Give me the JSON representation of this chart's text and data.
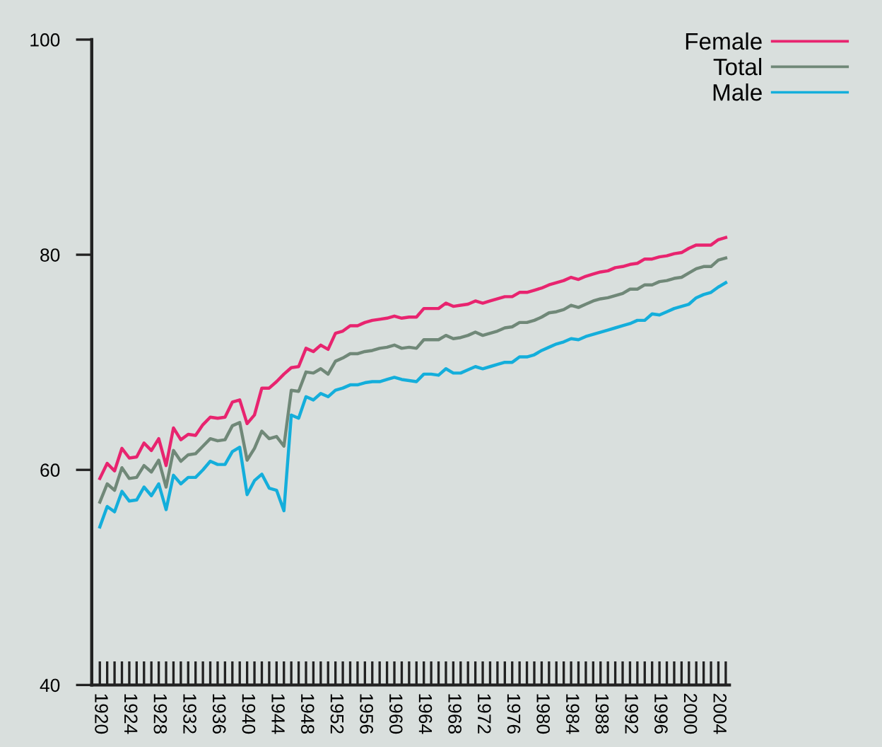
{
  "chart_data": {
    "type": "line",
    "x": [
      1920,
      1921,
      1922,
      1923,
      1924,
      1925,
      1926,
      1927,
      1928,
      1929,
      1930,
      1931,
      1932,
      1933,
      1934,
      1935,
      1936,
      1937,
      1938,
      1939,
      1940,
      1941,
      1942,
      1943,
      1944,
      1945,
      1946,
      1947,
      1948,
      1949,
      1950,
      1951,
      1952,
      1953,
      1954,
      1955,
      1956,
      1957,
      1958,
      1959,
      1960,
      1961,
      1962,
      1963,
      1964,
      1965,
      1966,
      1967,
      1968,
      1969,
      1970,
      1971,
      1972,
      1973,
      1974,
      1975,
      1976,
      1977,
      1978,
      1979,
      1980,
      1981,
      1982,
      1983,
      1984,
      1985,
      1986,
      1987,
      1988,
      1989,
      1990,
      1991,
      1992,
      1993,
      1994,
      1995,
      1996,
      1997,
      1998,
      1999,
      2000,
      2001,
      2002,
      2003,
      2004,
      2005
    ],
    "series": [
      {
        "name": "Female",
        "color": "#e8246f",
        "values": [
          59.2,
          60.6,
          59.9,
          62.0,
          61.1,
          61.2,
          62.5,
          61.8,
          62.9,
          60.4,
          63.9,
          62.8,
          63.3,
          63.2,
          64.2,
          64.9,
          64.8,
          64.9,
          66.3,
          66.5,
          64.3,
          65.1,
          67.6,
          67.6,
          68.2,
          68.9,
          69.5,
          69.6,
          71.3,
          71.0,
          71.6,
          71.2,
          72.7,
          72.9,
          73.4,
          73.4,
          73.7,
          73.9,
          74.0,
          74.1,
          74.3,
          74.1,
          74.2,
          74.2,
          75.0,
          75.0,
          75.0,
          75.5,
          75.2,
          75.3,
          75.4,
          75.7,
          75.5,
          75.7,
          75.9,
          76.1,
          76.1,
          76.5,
          76.5,
          76.7,
          76.9,
          77.2,
          77.4,
          77.6,
          77.9,
          77.7,
          78.0,
          78.2,
          78.4,
          78.5,
          78.8,
          78.9,
          79.1,
          79.2,
          79.6,
          79.6,
          79.8,
          79.9,
          80.1,
          80.2,
          80.6,
          80.9,
          80.9,
          80.9,
          81.4,
          81.6
        ]
      },
      {
        "name": "Total",
        "color": "#708878",
        "values": [
          57.0,
          58.7,
          58.1,
          60.2,
          59.2,
          59.3,
          60.4,
          59.8,
          60.9,
          58.4,
          61.8,
          60.8,
          61.4,
          61.5,
          62.2,
          62.9,
          62.7,
          62.8,
          64.1,
          64.4,
          60.9,
          62.0,
          63.6,
          62.9,
          63.1,
          62.2,
          67.4,
          67.3,
          69.1,
          69.0,
          69.4,
          68.9,
          70.1,
          70.4,
          70.8,
          70.8,
          71.0,
          71.1,
          71.3,
          71.4,
          71.6,
          71.3,
          71.4,
          71.3,
          72.1,
          72.1,
          72.1,
          72.5,
          72.2,
          72.3,
          72.5,
          72.8,
          72.5,
          72.7,
          72.9,
          73.2,
          73.3,
          73.7,
          73.7,
          73.9,
          74.2,
          74.6,
          74.7,
          74.9,
          75.3,
          75.1,
          75.4,
          75.7,
          75.9,
          76.0,
          76.2,
          76.4,
          76.8,
          76.8,
          77.2,
          77.2,
          77.5,
          77.6,
          77.8,
          77.9,
          78.3,
          78.7,
          78.9,
          78.9,
          79.5,
          79.7
        ]
      },
      {
        "name": "Male",
        "color": "#14aedb",
        "values": [
          54.7,
          56.6,
          56.1,
          58.0,
          57.1,
          57.2,
          58.4,
          57.6,
          58.7,
          56.3,
          59.5,
          58.7,
          59.3,
          59.3,
          60.0,
          60.8,
          60.5,
          60.5,
          61.7,
          62.1,
          57.7,
          59.0,
          59.6,
          58.3,
          58.1,
          56.2,
          65.1,
          64.8,
          66.8,
          66.5,
          67.1,
          66.8,
          67.4,
          67.6,
          67.9,
          67.9,
          68.1,
          68.2,
          68.2,
          68.4,
          68.6,
          68.4,
          68.3,
          68.2,
          68.9,
          68.9,
          68.8,
          69.4,
          69.0,
          69.0,
          69.3,
          69.6,
          69.4,
          69.6,
          69.8,
          70.0,
          70.0,
          70.5,
          70.5,
          70.7,
          71.1,
          71.4,
          71.7,
          71.9,
          72.2,
          72.1,
          72.4,
          72.6,
          72.8,
          73.0,
          73.2,
          73.4,
          73.6,
          73.9,
          73.9,
          74.5,
          74.4,
          74.7,
          75.0,
          75.2,
          75.4,
          76.0,
          76.3,
          76.5,
          77.0,
          77.4
        ]
      }
    ],
    "xlim": [
      1918.9,
      2005.5
    ],
    "xticks": [
      1920,
      1924,
      1928,
      1932,
      1936,
      1940,
      1944,
      1948,
      1952,
      1956,
      1960,
      1964,
      1968,
      1972,
      1976,
      1980,
      1984,
      1988,
      1992,
      1996,
      2000,
      2004
    ],
    "ylim": [
      40,
      100
    ],
    "yticks": [
      40,
      60,
      80,
      100
    ],
    "grid": false,
    "legend": "top right",
    "marker": "none",
    "line_style": "solid"
  }
}
